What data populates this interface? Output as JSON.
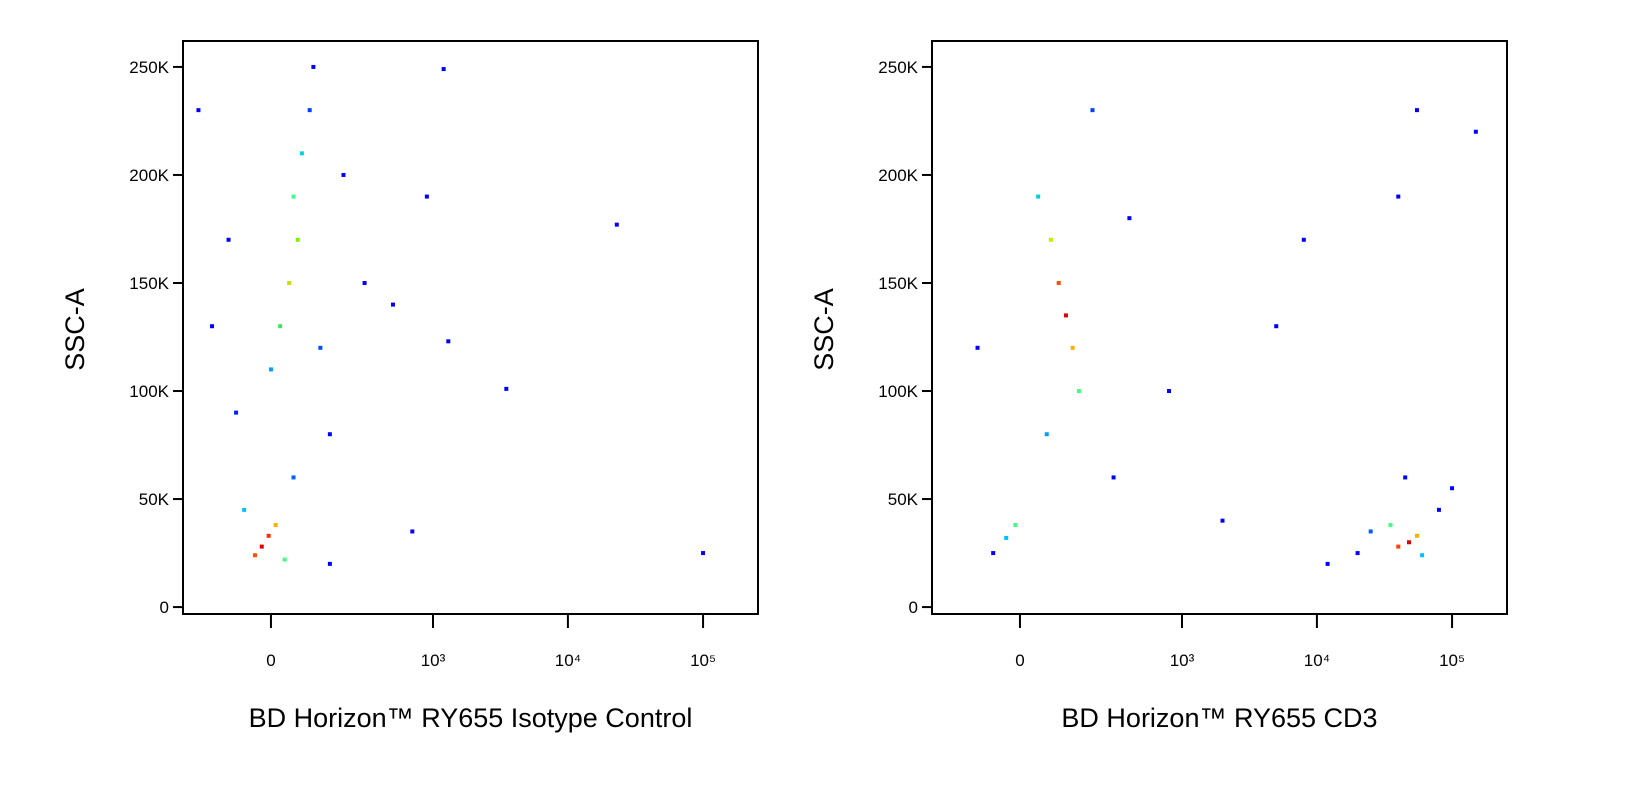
{
  "chart_data": [
    {
      "type": "scatter",
      "x_label": "BD Horizon™ RY655 Isotype Control",
      "y_label": "SSC-A",
      "xscale": "asinh",
      "xlim": [
        -270,
        255000
      ],
      "ylim": [
        -3200,
        262000
      ],
      "xticks": [
        0,
        {
          "value": 1000,
          "label": "10³"
        },
        {
          "value": 10000,
          "label": "10⁴"
        },
        {
          "value": 100000,
          "label": "10⁵"
        }
      ],
      "yticks": [
        0,
        {
          "value": 50000,
          "label": "50K"
        },
        {
          "value": 100000,
          "label": "100K"
        },
        {
          "value": 150000,
          "label": "150K"
        },
        {
          "value": 200000,
          "label": "200K"
        },
        {
          "value": 250000,
          "label": "250K"
        }
      ],
      "x": [
        -20,
        -5,
        -35,
        10,
        -60,
        30,
        40,
        60,
        20,
        50,
        70,
        0,
        90,
        -80,
        120,
        150,
        -100,
        200,
        50,
        100,
        -150,
        300,
        500,
        700,
        1300,
        3500,
        23000,
        100000,
        1200,
        -200,
        900,
        150
      ],
      "y": [
        28000,
        33000,
        24000,
        38000,
        45000,
        22000,
        150000,
        170000,
        130000,
        190000,
        210000,
        110000,
        230000,
        90000,
        120000,
        80000,
        170000,
        200000,
        60000,
        250000,
        130000,
        150000,
        140000,
        35000,
        123000,
        101000,
        177000,
        25000,
        249000,
        230000,
        190000,
        20000
      ],
      "colors": [
        "#e00000",
        "#ff2a00",
        "#ff5000",
        "#ffb000",
        "#00c0ff",
        "#40ff80",
        "#c8e000",
        "#80f000",
        "#40e060",
        "#40ff90",
        "#00d0e0",
        "#00a0ff",
        "#0040ff",
        "#0020ff",
        "#0050ff",
        "#0000ff",
        "#0000ff",
        "#0000ff",
        "#0060ff",
        "#0000ff",
        "#0000ff",
        "#0000ff",
        "#0000ff",
        "#0000ff",
        "#0000ff",
        "#0000ff",
        "#0000ff",
        "#0000ff",
        "#0000ff",
        "#0000ff",
        "#0000ff",
        "#0000ff"
      ]
    },
    {
      "type": "scatter",
      "x_label": "BD Horizon™ RY655 CD3",
      "y_label": "SSC-A",
      "xscale": "asinh",
      "xlim": [
        -270,
        255000
      ],
      "ylim": [
        -3200,
        262000
      ],
      "xticks": [
        0,
        {
          "value": 1000,
          "label": "10³"
        },
        {
          "value": 10000,
          "label": "10⁴"
        },
        {
          "value": 100000,
          "label": "10⁵"
        }
      ],
      "yticks": [
        0,
        {
          "value": 50000,
          "label": "50K"
        },
        {
          "value": 100000,
          "label": "100K"
        },
        {
          "value": 150000,
          "label": "150K"
        },
        {
          "value": 200000,
          "label": "200K"
        },
        {
          "value": 250000,
          "label": "250K"
        }
      ],
      "x": [
        110,
        90,
        130,
        70,
        150,
        40,
        60,
        200,
        -30,
        -10,
        -60,
        300,
        -100,
        400,
        800,
        2000,
        5000,
        8000,
        48000,
        40000,
        55000,
        35000,
        60000,
        25000,
        80000,
        20000,
        100000,
        45000,
        40000,
        55000,
        150000,
        12000
      ],
      "y": [
        135000,
        150000,
        120000,
        170000,
        100000,
        190000,
        80000,
        230000,
        32000,
        38000,
        25000,
        60000,
        120000,
        180000,
        100000,
        40000,
        130000,
        170000,
        30000,
        28000,
        33000,
        38000,
        24000,
        35000,
        45000,
        25000,
        55000,
        60000,
        190000,
        230000,
        220000,
        20000
      ],
      "colors": [
        "#e00000",
        "#ff5000",
        "#ffb000",
        "#c0f000",
        "#40ff80",
        "#00d0e0",
        "#00a0ff",
        "#0040ff",
        "#00c0ff",
        "#40ff80",
        "#0000ff",
        "#0000ff",
        "#0000ff",
        "#0000ff",
        "#0000ff",
        "#0000ff",
        "#0000ff",
        "#0000ff",
        "#e00000",
        "#ff4000",
        "#ffb000",
        "#40ff80",
        "#00c0ff",
        "#0060ff",
        "#0000ff",
        "#0000ff",
        "#0000ff",
        "#0000ff",
        "#0000ff",
        "#0000ff",
        "#0000ff",
        "#0000ff"
      ]
    }
  ]
}
